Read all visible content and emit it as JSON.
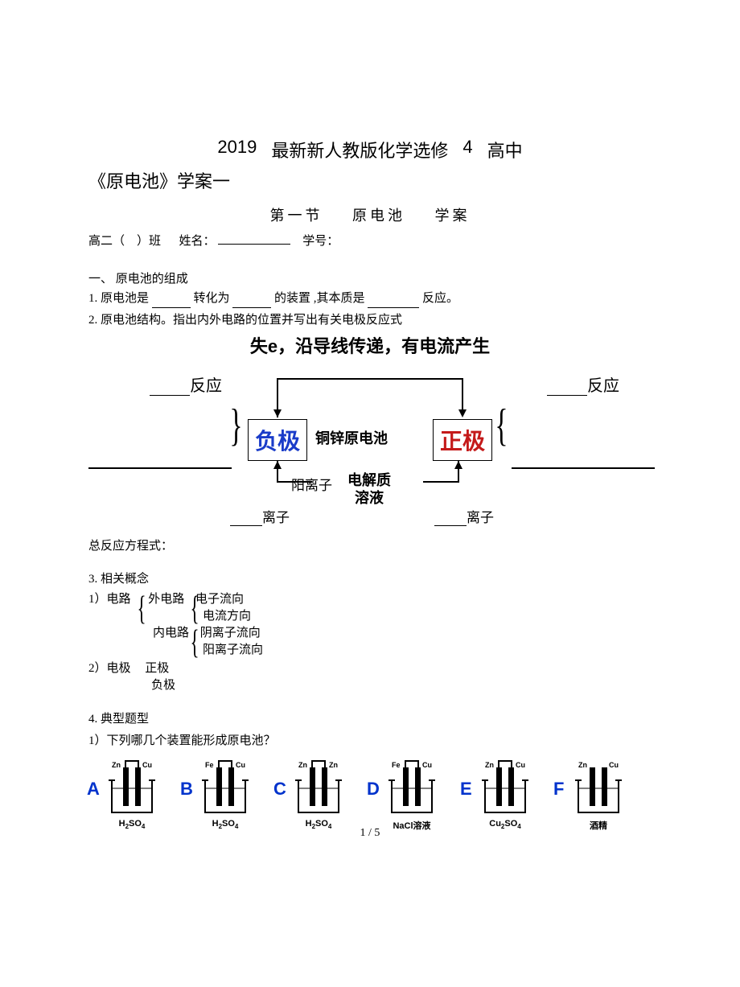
{
  "header": {
    "year": "2019",
    "title_mid": "最新新人教版化学选修",
    "title_num": "4",
    "title_end": "高中",
    "subtitle": "《原电池》学案一"
  },
  "lesson": {
    "section_no": "第一节",
    "name": "原电池",
    "kind": "学案"
  },
  "info": {
    "class_prefix": "高二（",
    "class_suffix": "）班",
    "name_label": "姓名：",
    "id_label": "学号："
  },
  "sect1": "一、  原电池的组成",
  "q1": {
    "a": "1. 原电池是",
    "b": "转化为",
    "c": "的装置 ,其本质是",
    "d": "反应。"
  },
  "q2": "2. 原电池结构。指出内外电路的位置并写出有关电极反应式",
  "diagram": {
    "top_text": "失e，沿导线传递，有电流产生",
    "neg": "负极",
    "pos": "正极",
    "mid": "铜锌原电池",
    "elec1": "电解质",
    "elec2": "溶液",
    "cation": "阳离子",
    "ion_left": "离子",
    "ion_right": "离子",
    "side_left": "反应",
    "side_right": "反应",
    "neg_color": "#1a3cc9",
    "pos_color": "#c41a1a"
  },
  "eq_label": "总反应方程式：",
  "concepts": {
    "h": "3. 相关概念",
    "c1a": "1）电路",
    "c1b": "外电路",
    "c1c": "电子流向",
    "c1d": "电流方向",
    "c1e": "内电路",
    "c1f": "阴离子流向",
    "c1g": "阳离子流向",
    "c2a": "2）电极",
    "c2b": "正极",
    "c2c": "负极"
  },
  "q4h": "4. 典型题型",
  "q4_1": "1）下列哪几个装置能形成原电池？",
  "beakers": [
    {
      "letter": "A",
      "left": "Zn",
      "right": "Cu",
      "sol": "H₂SO₄"
    },
    {
      "letter": "B",
      "left": "Fe",
      "right": "Cu",
      "sol": "H₂SO₄"
    },
    {
      "letter": "C",
      "left": "Zn",
      "right": "Zn",
      "sol": "H₂SO₄"
    },
    {
      "letter": "D",
      "left": "Fe",
      "right": "Cu",
      "sol": "NaCl溶液"
    },
    {
      "letter": "E",
      "left": "Zn",
      "right": "Cu",
      "sol": "Cu₂SO₄"
    },
    {
      "letter": "F",
      "left": "Zn",
      "right": "Cu",
      "sol": "酒精"
    }
  ],
  "footer": "1 / 5"
}
